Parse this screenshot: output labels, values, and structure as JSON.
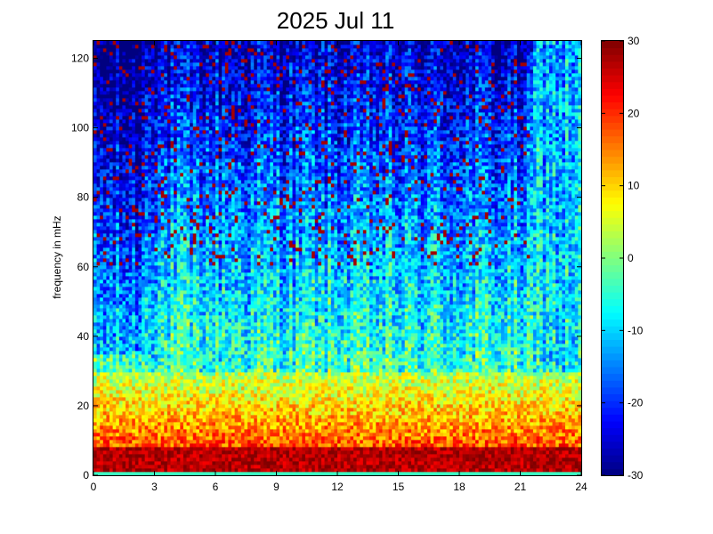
{
  "chart_data": {
    "type": "heatmap",
    "title": "2025 Jul 11",
    "xlabel": "",
    "ylabel": "frequency in mHz",
    "xlim": [
      0,
      24
    ],
    "ylim": [
      0,
      125
    ],
    "xticks": [
      0,
      3,
      6,
      9,
      12,
      15,
      18,
      21,
      24
    ],
    "yticks": [
      0,
      20,
      40,
      60,
      80,
      100,
      120
    ],
    "colorbar": {
      "colormap": "jet",
      "clim": [
        -30,
        30
      ],
      "ticks": [
        -30,
        -20,
        -10,
        0,
        10,
        20,
        30
      ]
    },
    "features": {
      "low_band": {
        "freq_range_mHz": [
          1,
          8
        ],
        "level": 25
      },
      "lower_band": {
        "freq_range_mHz": [
          8,
          30
        ],
        "level": 8
      },
      "late_day_change_hour": 21.7,
      "background_level_high_freq": -22
    }
  }
}
